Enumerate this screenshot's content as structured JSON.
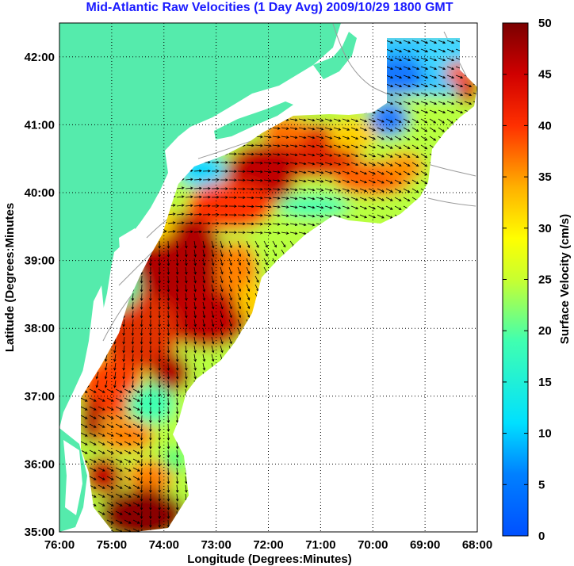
{
  "title": "Mid-Atlantic Raw Velocities (1 Day Avg) 2009/10/29 1800 GMT",
  "colors": {
    "title": "#1a1aff",
    "land": "#55ebac",
    "ocean": "#ffffff",
    "grid": "#000000",
    "bathymetry": "#9a9a9a"
  },
  "map": {
    "xlabel": "Longitude (Degrees:Minutes)",
    "ylabel": "Latitude (Degrees:Minutes",
    "lon_range": [
      -76,
      -68
    ],
    "lat_range": [
      35,
      42.5
    ],
    "x_ticks": [
      "76:00",
      "75:00",
      "74:00",
      "73:00",
      "72:00",
      "71:00",
      "70:00",
      "69:00",
      "68:00"
    ],
    "y_ticks": [
      "42:00",
      "41:00",
      "40:00",
      "39:00",
      "38:00",
      "37:00",
      "36:00",
      "35:00"
    ],
    "grid": "dotted"
  },
  "colorbar": {
    "label": "Surface Velocity (cm/s)",
    "range": [
      0,
      50
    ],
    "ticks": [
      "50",
      "45",
      "40",
      "35",
      "30",
      "25",
      "20",
      "15",
      "10",
      "5",
      "0"
    ]
  }
}
